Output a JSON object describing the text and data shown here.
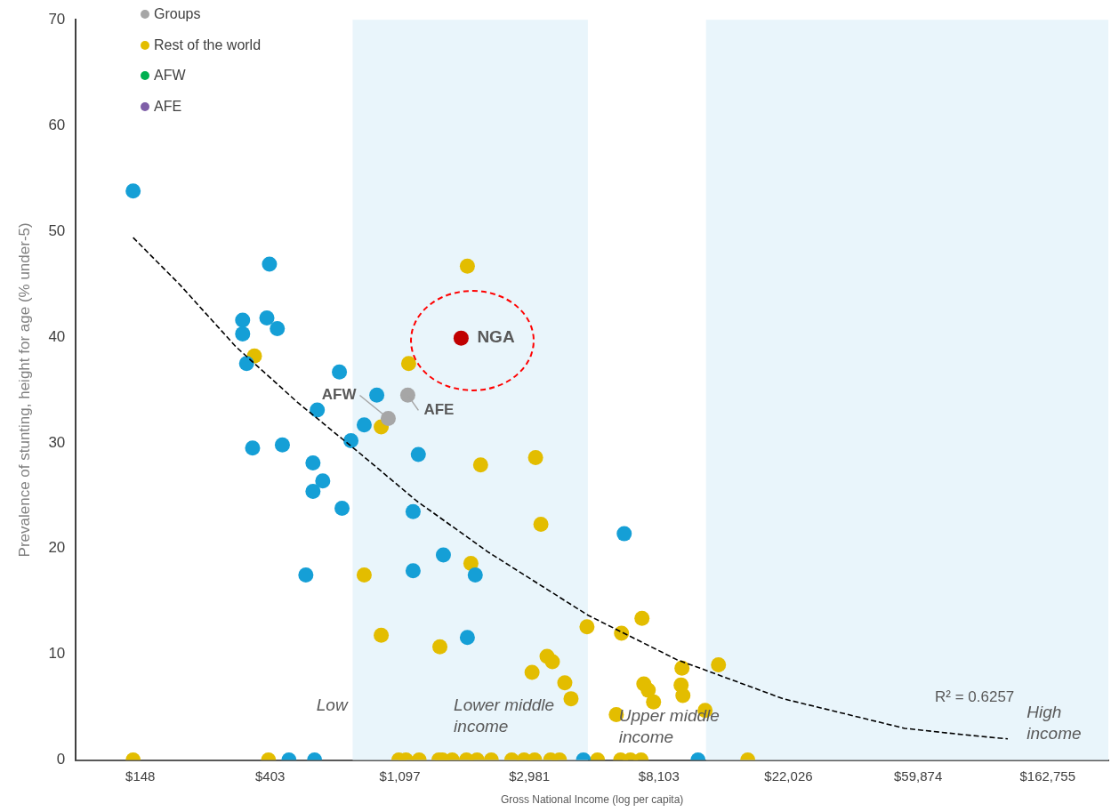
{
  "chart_data": {
    "type": "scatter",
    "xlabel": "Gross National Income (log per capita)",
    "ylabel": "Prevalence of stunting, height for age (% under-5)",
    "log": "x",
    "grid": false,
    "legend": "top left",
    "marker": "circle",
    "xlim": [
      90,
      260000
    ],
    "xticks": [
      {
        "value": 148,
        "label": "$148"
      },
      {
        "value": 403,
        "label": "$403"
      },
      {
        "value": 1097,
        "label": "$1,097"
      },
      {
        "value": 2981,
        "label": "$2,981"
      },
      {
        "value": 8103,
        "label": "$8,103"
      },
      {
        "value": 22026,
        "label": "$22,026"
      },
      {
        "value": 59874,
        "label": "$59,874"
      },
      {
        "value": 162755,
        "label": "$162,755"
      }
    ],
    "ylim": [
      0,
      70
    ],
    "yticks": [
      0,
      10,
      20,
      30,
      40,
      50,
      60,
      70
    ],
    "bands": [
      {
        "axis": "x",
        "from": 762,
        "to": 4682,
        "color": "#e9f5fb"
      },
      {
        "axis": "x",
        "from": 11654,
        "to": 260000,
        "color": "#e9f5fb"
      }
    ],
    "series": [
      {
        "name": "Groups",
        "color": "#a6a6a6",
        "x": [
          1003,
          1166
        ],
        "values": [
          32.3,
          34.5
        ]
      },
      {
        "color": "#c00000",
        "x": [
          1760
        ],
        "values": [
          39.9
        ]
      },
      {
        "type": "line",
        "color": "#000000",
        "line_style": "dashed",
        "marker": "none",
        "x": [
          140,
          200,
          309,
          499,
          806,
          1249,
          2160,
          4682,
          9290,
          21130,
          54000,
          84900,
          119700
        ],
        "values": [
          49.4,
          45.0,
          39.1,
          33.8,
          29.0,
          24.5,
          19.7,
          13.7,
          9.5,
          5.8,
          3.0,
          2.4,
          2.0
        ]
      },
      {
        "color": "#159fd6",
        "x": [
          140,
          401,
          326,
          326,
          393,
          426,
          336,
          688,
          918,
          580,
          833,
          752,
          1265,
          352,
          443,
          561,
          605,
          561,
          702,
          1215,
          1535,
          1215,
          1963,
          531,
          1847,
          6198,
          466,
          568,
          4524,
          10954
        ],
        "values": [
          53.8,
          46.9,
          41.6,
          40.3,
          41.8,
          40.8,
          37.5,
          36.7,
          34.5,
          33.1,
          31.7,
          30.2,
          28.9,
          29.5,
          29.8,
          28.1,
          26.4,
          25.4,
          23.8,
          23.5,
          19.4,
          17.9,
          17.5,
          17.5,
          11.6,
          21.4,
          0,
          0,
          0,
          0
        ]
      },
      {
        "name": "Rest of the world",
        "color": "#e3bd00",
        "x": [
          1847,
          357,
          1174,
          950,
          833,
          1898,
          3127,
          2046,
          3258,
          950,
          1494,
          4650,
          3043,
          3416,
          3560,
          3918,
          4111,
          7109,
          6070,
          9680,
          12830,
          9613,
          9750,
          7210,
          7461,
          7773,
          5830,
          11570,
          140,
          398,
          1088,
          1150,
          1273,
          1482,
          1524,
          1643,
          1834,
          1991,
          2222,
          2601,
          2862,
          3105,
          3511,
          3761,
          5045,
          6028,
          6503,
          7060,
          16084
        ],
        "values": [
          46.7,
          38.2,
          37.5,
          31.5,
          17.5,
          18.6,
          28.6,
          27.9,
          22.3,
          11.8,
          10.7,
          12.6,
          8.3,
          9.8,
          9.3,
          7.3,
          5.8,
          13.4,
          12.0,
          8.7,
          9.0,
          7.1,
          6.1,
          7.2,
          6.6,
          5.5,
          4.3,
          4.7,
          0,
          0,
          0,
          0,
          0,
          0,
          0,
          0,
          0,
          0,
          0,
          0,
          0,
          0,
          0,
          0,
          0,
          0,
          0,
          0,
          0
        ]
      },
      {
        "name": "AFW",
        "color": "#00b050"
      },
      {
        "name": "AFE",
        "color": "#7f5fa8"
      }
    ],
    "annotations": [
      {
        "text": "NGA",
        "x": 1760,
        "y": 39.9
      },
      {
        "text": "AFW",
        "x": 1003,
        "y": 32.3
      },
      {
        "text": "AFE",
        "x": 1166,
        "y": 34.5
      },
      "Low",
      "Lower middle income",
      "Upper middle income",
      "High income",
      "R² = 0.6257"
    ]
  }
}
